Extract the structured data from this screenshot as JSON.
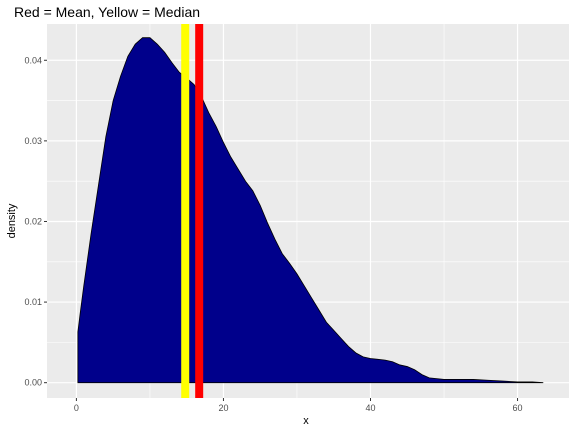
{
  "chart_data": {
    "type": "area",
    "title": "Red = Mean, Yellow = Median",
    "xlabel": "x",
    "ylabel": "density",
    "xlim": [
      -4,
      67
    ],
    "ylim": [
      -0.0019,
      0.0445
    ],
    "x_ticks": [
      0,
      20,
      40,
      60
    ],
    "x_tick_labels": [
      "0",
      "20",
      "40",
      "60"
    ],
    "y_ticks": [
      0.0,
      0.01,
      0.02,
      0.03,
      0.04
    ],
    "y_tick_labels": [
      "0.00",
      "0.01",
      "0.02",
      "0.03",
      "0.04"
    ],
    "grid": true,
    "legend": "none",
    "series": [
      {
        "x": [
          0.2,
          0.5,
          1,
          2,
          3,
          4,
          5,
          6,
          7,
          8,
          9,
          10,
          11,
          12,
          13,
          14,
          15,
          16,
          17,
          18,
          19,
          20,
          21,
          22,
          23,
          24,
          25,
          26,
          27,
          28,
          29,
          30,
          31,
          32,
          33,
          34,
          35,
          36,
          37,
          38,
          39,
          40,
          41,
          42,
          43,
          44,
          45,
          46,
          47,
          48,
          49,
          50,
          51,
          52,
          54,
          56,
          58,
          60,
          62,
          63.5
        ],
        "values": [
          0.0063,
          0.0085,
          0.012,
          0.0185,
          0.0245,
          0.0305,
          0.035,
          0.038,
          0.0405,
          0.042,
          0.0428,
          0.0428,
          0.042,
          0.041,
          0.0397,
          0.0385,
          0.0378,
          0.037,
          0.0355,
          0.0335,
          0.0318,
          0.0298,
          0.028,
          0.0265,
          0.025,
          0.0238,
          0.022,
          0.0198,
          0.0178,
          0.016,
          0.0148,
          0.0135,
          0.012,
          0.0105,
          0.009,
          0.0075,
          0.0065,
          0.0055,
          0.0045,
          0.0037,
          0.0032,
          0.003,
          0.0029,
          0.0028,
          0.0026,
          0.0022,
          0.002,
          0.0016,
          0.001,
          0.0006,
          0.0005,
          0.0004,
          0.0004,
          0.0004,
          0.0004,
          0.0003,
          0.0002,
          0.0001,
          0.0001,
          0.0
        ],
        "fill": "#00008B",
        "stroke": "#000000"
      }
    ],
    "vlines": [
      {
        "x": 14.8,
        "color": "#FFFF00",
        "meaning": "median"
      },
      {
        "x": 16.7,
        "color": "#FF0000",
        "meaning": "mean"
      }
    ],
    "colors": {
      "panel": "#EBEBEB",
      "grid_major": "#FFFFFF",
      "tick_text": "#4D4D4D"
    }
  }
}
